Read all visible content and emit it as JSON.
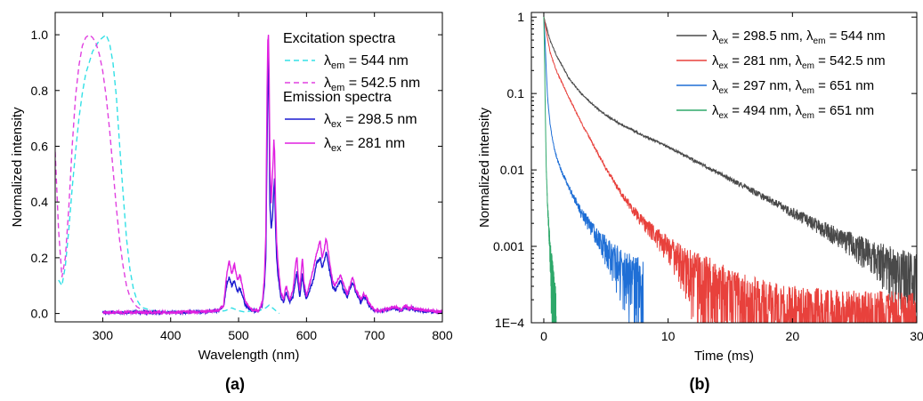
{
  "panel_labels": {
    "a": "(a)",
    "b": "(b)"
  },
  "chart_data": [
    {
      "type": "line",
      "panel": "(a)",
      "xlabel": "Wavelength (nm)",
      "ylabel": "Normalized intensity",
      "xlim": [
        230,
        800
      ],
      "ylim": [
        -0.03,
        1.08
      ],
      "xticks": [
        300,
        400,
        500,
        600,
        700,
        800
      ],
      "yticks": [
        0.0,
        0.2,
        0.4,
        0.6,
        0.8,
        1.0
      ],
      "xtick_labels": [
        "300",
        "400",
        "500",
        "600",
        "700",
        "800"
      ],
      "ytick_labels": [
        "0.0",
        "0.2",
        "0.4",
        "0.6",
        "0.8",
        "1.0"
      ],
      "grid": false,
      "legend_position": "top-right",
      "legend_groups": [
        "Excitation spectra",
        "Emission spectra"
      ],
      "series": [
        {
          "name": "λem = 544 nm",
          "legend": {
            "sym": "λ",
            "sub": "em",
            "rest": " = 544 nm"
          },
          "group": "Excitation spectra",
          "color": "#33e0e6",
          "dash": true,
          "x": [
            235,
            240,
            245,
            250,
            255,
            260,
            265,
            270,
            275,
            280,
            285,
            290,
            295,
            300,
            305,
            310,
            315,
            320,
            325,
            330,
            335,
            340,
            345,
            350,
            355,
            360,
            370,
            380,
            390,
            400,
            420,
            440,
            460,
            480,
            490,
            500,
            510,
            520,
            530,
            540,
            545,
            550,
            555,
            560
          ],
          "y": [
            0.12,
            0.1,
            0.17,
            0.3,
            0.45,
            0.58,
            0.7,
            0.79,
            0.86,
            0.9,
            0.94,
            0.96,
            0.98,
            0.99,
            1.0,
            0.97,
            0.9,
            0.78,
            0.6,
            0.43,
            0.27,
            0.16,
            0.09,
            0.05,
            0.03,
            0.02,
            0.012,
            0.008,
            0.006,
            0.005,
            0.004,
            0.004,
            0.005,
            0.01,
            0.02,
            0.01,
            0.005,
            0.01,
            0.01,
            0.02,
            0.03,
            0.02,
            0.01,
            0.0
          ]
        },
        {
          "name": "λem = 542.5 nm",
          "legend": {
            "sym": "λ",
            "sub": "em",
            "rest": " = 542.5 nm"
          },
          "group": "Excitation spectra",
          "color": "#e040e0",
          "dash": true,
          "x": [
            230,
            235,
            240,
            245,
            250,
            255,
            260,
            265,
            270,
            275,
            280,
            285,
            290,
            295,
            300,
            305,
            310,
            315,
            320,
            325,
            330,
            335,
            340,
            345,
            350,
            355,
            360,
            370,
            380,
            390
          ],
          "y": [
            0.58,
            0.3,
            0.13,
            0.2,
            0.38,
            0.6,
            0.78,
            0.89,
            0.96,
            0.99,
            1.0,
            0.99,
            0.97,
            0.93,
            0.87,
            0.78,
            0.66,
            0.52,
            0.38,
            0.26,
            0.17,
            0.1,
            0.06,
            0.04,
            0.025,
            0.017,
            0.012,
            0.008,
            0.006,
            0.005
          ]
        },
        {
          "name": "λex = 298.5 nm",
          "legend": {
            "sym": "λ",
            "sub": "ex",
            "rest": " = 298.5 nm"
          },
          "group": "Emission spectra",
          "color": "#1a1ad0",
          "dash": false,
          "x": [
            300,
            350,
            400,
            450,
            470,
            478,
            482,
            486,
            490,
            494,
            498,
            502,
            506,
            510,
            520,
            530,
            535,
            538,
            540,
            542,
            543,
            544,
            545,
            546,
            548,
            550,
            552,
            553,
            554,
            556,
            558,
            562,
            566,
            570,
            575,
            580,
            584,
            586,
            588,
            590,
            592,
            594,
            596,
            600,
            604,
            610,
            615,
            620,
            623,
            626,
            629,
            632,
            635,
            638,
            642,
            646,
            650,
            655,
            660,
            664,
            668,
            672,
            676,
            680,
            684,
            688,
            692,
            696,
            700,
            710,
            720,
            730,
            740,
            745,
            750,
            755,
            760,
            770,
            780,
            790,
            800
          ],
          "y": [
            0.004,
            0.004,
            0.004,
            0.006,
            0.01,
            0.025,
            0.1,
            0.13,
            0.1,
            0.12,
            0.08,
            0.09,
            0.06,
            0.03,
            0.01,
            0.01,
            0.03,
            0.1,
            0.2,
            0.6,
            0.85,
            0.93,
            0.7,
            0.4,
            0.3,
            0.35,
            0.45,
            0.48,
            0.35,
            0.2,
            0.14,
            0.06,
            0.04,
            0.08,
            0.04,
            0.06,
            0.12,
            0.15,
            0.1,
            0.06,
            0.1,
            0.14,
            0.09,
            0.05,
            0.08,
            0.12,
            0.18,
            0.2,
            0.16,
            0.19,
            0.22,
            0.18,
            0.14,
            0.1,
            0.08,
            0.1,
            0.12,
            0.08,
            0.06,
            0.09,
            0.11,
            0.08,
            0.06,
            0.04,
            0.06,
            0.05,
            0.03,
            0.02,
            0.01,
            0.008,
            0.015,
            0.02,
            0.01,
            0.025,
            0.015,
            0.02,
            0.012,
            0.01,
            0.008,
            0.006,
            0.005
          ]
        },
        {
          "name": "λex = 281 nm",
          "legend": {
            "sym": "λ",
            "sub": "ex",
            "rest": " = 281 nm"
          },
          "group": "Emission spectra",
          "color": "#e020e0",
          "dash": false,
          "x": [
            300,
            350,
            400,
            450,
            470,
            478,
            482,
            486,
            490,
            494,
            498,
            502,
            506,
            510,
            520,
            530,
            535,
            538,
            540,
            542,
            543,
            544,
            545,
            546,
            548,
            550,
            552,
            553,
            554,
            556,
            558,
            562,
            566,
            570,
            575,
            580,
            584,
            586,
            588,
            590,
            592,
            594,
            596,
            600,
            604,
            610,
            615,
            620,
            623,
            626,
            629,
            632,
            635,
            638,
            642,
            646,
            650,
            655,
            660,
            664,
            668,
            672,
            676,
            680,
            684,
            688,
            692,
            696,
            700,
            710,
            720,
            730,
            740,
            745,
            750,
            755,
            760,
            770,
            780,
            790,
            800
          ],
          "y": [
            0.004,
            0.004,
            0.004,
            0.007,
            0.012,
            0.03,
            0.13,
            0.19,
            0.14,
            0.18,
            0.12,
            0.14,
            0.09,
            0.04,
            0.012,
            0.012,
            0.04,
            0.13,
            0.28,
            0.8,
            0.98,
            1.0,
            0.85,
            0.55,
            0.4,
            0.5,
            0.62,
            0.58,
            0.45,
            0.26,
            0.18,
            0.08,
            0.05,
            0.1,
            0.05,
            0.08,
            0.18,
            0.2,
            0.13,
            0.08,
            0.14,
            0.2,
            0.12,
            0.06,
            0.1,
            0.16,
            0.22,
            0.26,
            0.2,
            0.23,
            0.27,
            0.22,
            0.17,
            0.12,
            0.1,
            0.12,
            0.14,
            0.1,
            0.07,
            0.1,
            0.13,
            0.09,
            0.07,
            0.05,
            0.07,
            0.06,
            0.035,
            0.025,
            0.012,
            0.01,
            0.018,
            0.025,
            0.012,
            0.03,
            0.018,
            0.025,
            0.015,
            0.012,
            0.01,
            0.008,
            0.006
          ]
        }
      ]
    },
    {
      "type": "line",
      "panel": "(b)",
      "xlabel": "Time (ms)",
      "ylabel": "Normalized intensity",
      "xlim": [
        -1,
        30
      ],
      "ylim": [
        0.0001,
        1.15
      ],
      "yscale": "log",
      "xticks": [
        0,
        10,
        20,
        30
      ],
      "yticks": [
        1,
        0.1,
        0.01,
        0.001,
        0.0001
      ],
      "xtick_labels": [
        "0",
        "10",
        "20",
        "30"
      ],
      "ytick_labels": [
        "1",
        "0.1",
        "0.01",
        "0.001",
        "1E−4"
      ],
      "grid": false,
      "legend_position": "top-right",
      "series": [
        {
          "name": "λex = 298.5 nm, λem = 544 nm",
          "legend": {
            "a_sym": "λ",
            "a_sub": "ex",
            "a_rest": " = 298.5 nm, ",
            "b_sym": "λ",
            "b_sub": "em",
            "b_rest": " = 544 nm"
          },
          "color": "#4a4a4a",
          "x": [
            0,
            0.5,
            1,
            2,
            3,
            4,
            5,
            6,
            7,
            8,
            9,
            10,
            12,
            14,
            16,
            18,
            20,
            22,
            24,
            26,
            28,
            30
          ],
          "y": [
            1.0,
            0.5,
            0.32,
            0.16,
            0.1,
            0.07,
            0.052,
            0.041,
            0.034,
            0.028,
            0.024,
            0.02,
            0.0135,
            0.0092,
            0.0062,
            0.0042,
            0.0028,
            0.0019,
            0.00128,
            0.00087,
            0.00058,
            0.0004
          ]
        },
        {
          "name": "λex = 281 nm, λem = 542.5 nm",
          "legend": {
            "a_sym": "λ",
            "a_sub": "ex",
            "a_rest": " = 281 nm, ",
            "b_sym": "λ",
            "b_sub": "em",
            "b_rest": " = 542.5 nm"
          },
          "color": "#e8413c",
          "x": [
            0,
            0.5,
            1,
            2,
            3,
            4,
            5,
            6,
            7,
            8,
            9,
            10,
            11,
            12,
            13,
            14,
            16,
            18,
            20,
            22,
            25,
            28,
            30
          ],
          "y": [
            1.0,
            0.35,
            0.2,
            0.09,
            0.042,
            0.021,
            0.0105,
            0.0056,
            0.0033,
            0.0021,
            0.0014,
            0.00095,
            0.00066,
            0.00047,
            0.00036,
            0.00028,
            0.0002,
            0.00016,
            0.00014,
            0.00013,
            0.00012,
            0.00012,
            0.00011
          ]
        },
        {
          "name": "λex = 297 nm, λem = 651 nm",
          "legend": {
            "a_sym": "λ",
            "a_sub": "ex",
            "a_rest": " = 297 nm, ",
            "b_sym": "λ",
            "b_sub": "em",
            "b_rest": " = 651 nm"
          },
          "color": "#1f6fd6",
          "x": [
            0,
            0.1,
            0.2,
            0.3,
            0.5,
            0.7,
            1,
            1.5,
            2,
            3,
            4,
            5,
            6,
            7,
            8
          ],
          "y": [
            1.0,
            0.5,
            0.2,
            0.09,
            0.04,
            0.025,
            0.015,
            0.009,
            0.006,
            0.0028,
            0.0016,
            0.00095,
            0.0006,
            0.0004,
            0.0003
          ]
        },
        {
          "name": "λex = 494 nm, λem = 651 nm",
          "legend": {
            "a_sym": "λ",
            "a_sub": "ex",
            "a_rest": " = 494 nm, ",
            "b_sym": "λ",
            "b_sub": "em",
            "b_rest": " = 651 nm"
          },
          "color": "#2ea86a",
          "x": [
            0,
            0.05,
            0.1,
            0.15,
            0.2,
            0.3,
            0.4,
            0.5,
            0.6,
            0.7,
            0.8,
            0.9,
            1.0
          ],
          "y": [
            1.0,
            0.4,
            0.1,
            0.03,
            0.01,
            0.0035,
            0.0018,
            0.0009,
            0.0005,
            0.0003,
            0.00022,
            0.00016,
            0.00012
          ]
        }
      ]
    }
  ]
}
